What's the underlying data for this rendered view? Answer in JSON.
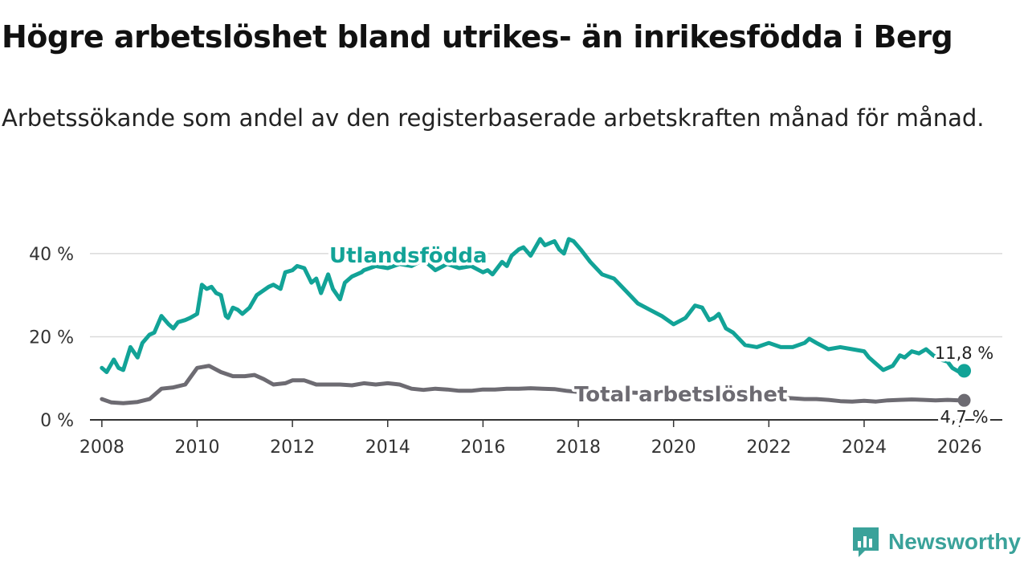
{
  "title": "Högre arbetslöshet bland utrikes- än inrikesfödda i Berg",
  "subtitle": "Arbetssökande som andel av den registerbaserade arbetskraften månad för månad.",
  "brand": {
    "name": "Newsworthy"
  },
  "colors": {
    "foreign": "#12a397",
    "total": "#6d6b72",
    "grid": "#d9d9d9",
    "axis": "#333333"
  },
  "chart_data": {
    "type": "line",
    "title": "Högre arbetslöshet bland utrikes- än inrikesfödda i Berg",
    "xlabel": "",
    "ylabel": "",
    "xlim": [
      2007.75,
      2026.9
    ],
    "ylim": [
      0,
      45
    ],
    "x_ticks": [
      2008,
      2010,
      2012,
      2014,
      2016,
      2018,
      2020,
      2022,
      2024,
      2026
    ],
    "x_tick_labels": [
      "2008",
      "2010",
      "2012",
      "2014",
      "2016",
      "2018",
      "2020",
      "2022",
      "2024",
      "2026"
    ],
    "y_ticks": [
      0,
      20,
      40
    ],
    "y_tick_labels": [
      "0 %",
      "20 %",
      "40 %"
    ],
    "series": [
      {
        "name": "Utlandsfödda",
        "label": "Utlandsfödda",
        "end_label": "11,8 %",
        "x": [
          2008.0,
          2008.1,
          2008.25,
          2008.35,
          2008.45,
          2008.6,
          2008.75,
          2008.85,
          2009.0,
          2009.1,
          2009.25,
          2009.4,
          2009.5,
          2009.6,
          2009.75,
          2009.85,
          2010.0,
          2010.1,
          2010.2,
          2010.3,
          2010.4,
          2010.5,
          2010.6,
          2010.65,
          2010.75,
          2010.85,
          2010.95,
          2011.1,
          2011.25,
          2011.5,
          2011.6,
          2011.75,
          2011.85,
          2012.0,
          2012.1,
          2012.25,
          2012.4,
          2012.5,
          2012.6,
          2012.75,
          2012.85,
          2013.0,
          2013.1,
          2013.25,
          2013.45,
          2013.5,
          2013.75,
          2014.0,
          2014.25,
          2014.5,
          2014.75,
          2015.0,
          2015.25,
          2015.5,
          2015.75,
          2016.0,
          2016.1,
          2016.2,
          2016.4,
          2016.5,
          2016.6,
          2016.75,
          2016.85,
          2017.0,
          2017.2,
          2017.3,
          2017.4,
          2017.5,
          2017.6,
          2017.7,
          2017.8,
          2017.9,
          2018.05,
          2018.25,
          2018.5,
          2018.75,
          2019.0,
          2019.25,
          2019.5,
          2019.75,
          2020.0,
          2020.25,
          2020.45,
          2020.6,
          2020.75,
          2020.85,
          2020.95,
          2021.1,
          2021.25,
          2021.5,
          2021.75,
          2022.0,
          2022.25,
          2022.5,
          2022.75,
          2022.85,
          2023.0,
          2023.25,
          2023.5,
          2023.75,
          2024.0,
          2024.1,
          2024.25,
          2024.4,
          2024.6,
          2024.75,
          2024.85,
          2025.0,
          2025.15,
          2025.3,
          2025.45,
          2025.6,
          2025.75,
          2025.85,
          2026.0,
          2026.1
        ],
        "values": [
          12.5,
          11.5,
          14.5,
          12.5,
          12.0,
          17.5,
          15.0,
          18.5,
          20.5,
          21.0,
          25.0,
          23.0,
          22.0,
          23.5,
          24.0,
          24.5,
          25.5,
          32.5,
          31.5,
          32.0,
          30.5,
          30.0,
          25.0,
          24.5,
          27.0,
          26.5,
          25.5,
          27.0,
          30.0,
          32.0,
          32.5,
          31.5,
          35.5,
          36.0,
          37.0,
          36.5,
          33.0,
          34.0,
          30.5,
          35.0,
          31.5,
          29.0,
          33.0,
          34.5,
          35.5,
          36.0,
          37.0,
          36.5,
          37.5,
          37.0,
          38.5,
          36.0,
          37.5,
          36.5,
          37.0,
          35.5,
          36.0,
          35.0,
          38.0,
          37.0,
          39.5,
          41.0,
          41.5,
          39.5,
          43.5,
          42.0,
          42.5,
          43.0,
          41.0,
          40.0,
          43.5,
          43.0,
          41.0,
          38.0,
          35.0,
          34.0,
          31.0,
          28.0,
          26.5,
          25.0,
          23.0,
          24.5,
          27.5,
          27.0,
          24.0,
          24.5,
          25.5,
          22.0,
          21.0,
          18.0,
          17.5,
          18.5,
          17.5,
          17.5,
          18.5,
          19.5,
          18.5,
          17.0,
          17.5,
          17.0,
          16.5,
          15.0,
          13.5,
          12.0,
          13.0,
          15.5,
          15.0,
          16.5,
          16.0,
          17.0,
          15.5,
          14.5,
          14.0,
          12.5,
          11.5,
          11.8
        ]
      },
      {
        "name": "Total arbetslöshet",
        "label": "Total arbetslöshet",
        "end_label": "4,7 %",
        "x": [
          2008.0,
          2008.2,
          2008.45,
          2008.75,
          2009.0,
          2009.25,
          2009.5,
          2009.75,
          2010.0,
          2010.25,
          2010.5,
          2010.75,
          2011.0,
          2011.2,
          2011.4,
          2011.6,
          2011.85,
          2012.0,
          2012.25,
          2012.5,
          2012.75,
          2013.0,
          2013.25,
          2013.5,
          2013.75,
          2014.0,
          2014.25,
          2014.5,
          2014.75,
          2015.0,
          2015.25,
          2015.5,
          2015.75,
          2016.0,
          2016.25,
          2016.5,
          2016.75,
          2017.0,
          2017.25,
          2017.5,
          2017.75,
          2018.0,
          2018.5,
          2019.0,
          2019.5,
          2020.0,
          2020.5,
          2021.0,
          2021.5,
          2022.0,
          2022.5,
          2022.75,
          2023.0,
          2023.25,
          2023.5,
          2023.75,
          2024.0,
          2024.25,
          2024.5,
          2024.75,
          2025.0,
          2025.25,
          2025.5,
          2025.75,
          2026.0,
          2026.1
        ],
        "values": [
          5.0,
          4.2,
          4.0,
          4.3,
          5.0,
          7.5,
          7.8,
          8.5,
          12.5,
          13.0,
          11.5,
          10.5,
          10.5,
          10.8,
          9.8,
          8.5,
          8.8,
          9.5,
          9.5,
          8.5,
          8.5,
          8.5,
          8.3,
          8.8,
          8.5,
          8.8,
          8.5,
          7.5,
          7.2,
          7.5,
          7.3,
          7.0,
          7.0,
          7.3,
          7.3,
          7.5,
          7.5,
          7.6,
          7.5,
          7.4,
          7.0,
          6.7,
          6.7,
          6.6,
          6.4,
          6.3,
          6.4,
          6.0,
          5.7,
          5.5,
          5.2,
          5.0,
          5.0,
          4.8,
          4.5,
          4.4,
          4.6,
          4.4,
          4.7,
          4.8,
          4.9,
          4.8,
          4.7,
          4.8,
          4.7,
          4.7
        ]
      }
    ]
  }
}
